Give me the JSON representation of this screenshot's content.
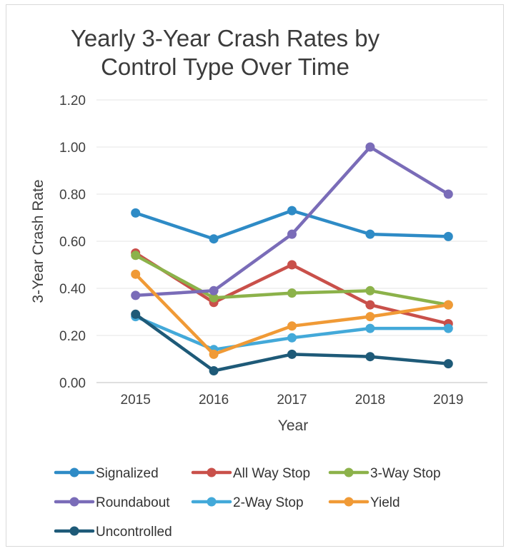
{
  "chart_data": {
    "type": "line",
    "title_lines": [
      "Yearly 3-Year Crash Rates by",
      "Control Type Over Time"
    ],
    "xlabel": "Year",
    "ylabel": "3-Year Crash Rate",
    "categories": [
      "2015",
      "2016",
      "2017",
      "2018",
      "2019"
    ],
    "y_ticks": [
      "0.00",
      "0.20",
      "0.40",
      "0.60",
      "0.80",
      "1.00",
      "1.20"
    ],
    "ylim": [
      0,
      1.2
    ],
    "grid": "horizontal",
    "legend_position": "bottom",
    "series": [
      {
        "name": "Signalized",
        "color": "#2E8BC6",
        "values": [
          0.72,
          0.61,
          0.73,
          0.63,
          0.62
        ]
      },
      {
        "name": "All Way Stop",
        "color": "#C9504A",
        "values": [
          0.55,
          0.34,
          0.5,
          0.33,
          0.25
        ]
      },
      {
        "name": "3-Way Stop",
        "color": "#8CB24A",
        "values": [
          0.54,
          0.36,
          0.38,
          0.39,
          0.33
        ]
      },
      {
        "name": "Roundabout",
        "color": "#7A6CB8",
        "values": [
          0.37,
          0.39,
          0.63,
          1.0,
          0.8
        ]
      },
      {
        "name": "2-Way Stop",
        "color": "#43A9D9",
        "values": [
          0.28,
          0.14,
          0.19,
          0.23,
          0.23
        ]
      },
      {
        "name": "Yield",
        "color": "#F09A36",
        "values": [
          0.46,
          0.12,
          0.24,
          0.28,
          0.33
        ]
      },
      {
        "name": "Uncontrolled",
        "color": "#1E5A78",
        "values": [
          0.29,
          0.05,
          0.12,
          0.11,
          0.08
        ]
      }
    ]
  }
}
